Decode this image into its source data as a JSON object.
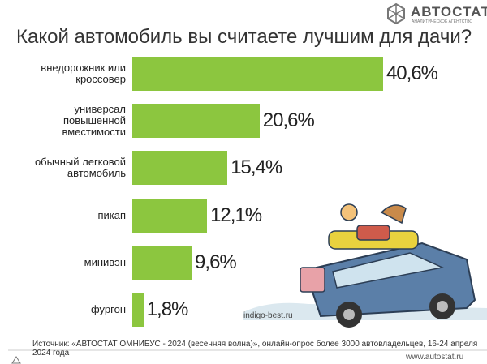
{
  "chart_data": {
    "type": "bar",
    "orientation": "horizontal",
    "title": "Какой автомобиль вы считаете лучшим для дачи?",
    "categories": [
      "внедорожник или\nкроссовер",
      "универсал\nповышенной\nвместимости",
      "обычный легковой\nавтомобиль",
      "пикап",
      "минивэн",
      "фургон"
    ],
    "values": [
      40.6,
      20.6,
      15.4,
      12.1,
      9.6,
      1.8
    ],
    "value_labels": [
      "40,6%",
      "20,6%",
      "15,4%",
      "12,1%",
      "9,6%",
      "1,8%"
    ],
    "color": "#8cc63f",
    "source": "Источник: «АВТОСТАТ ОМНИБУС - 2024 (весенняя волна)», онлайн-опрос более 3000 автовладельцев, 16-24 апреля 2024 года"
  },
  "brand": {
    "name": "АВТОСТАТ",
    "subtitle": "АНАЛИТИЧЕСКОЕ АГЕНТСТВО",
    "site": "www.autostat.ru"
  },
  "credit": "indigo-best.ru"
}
